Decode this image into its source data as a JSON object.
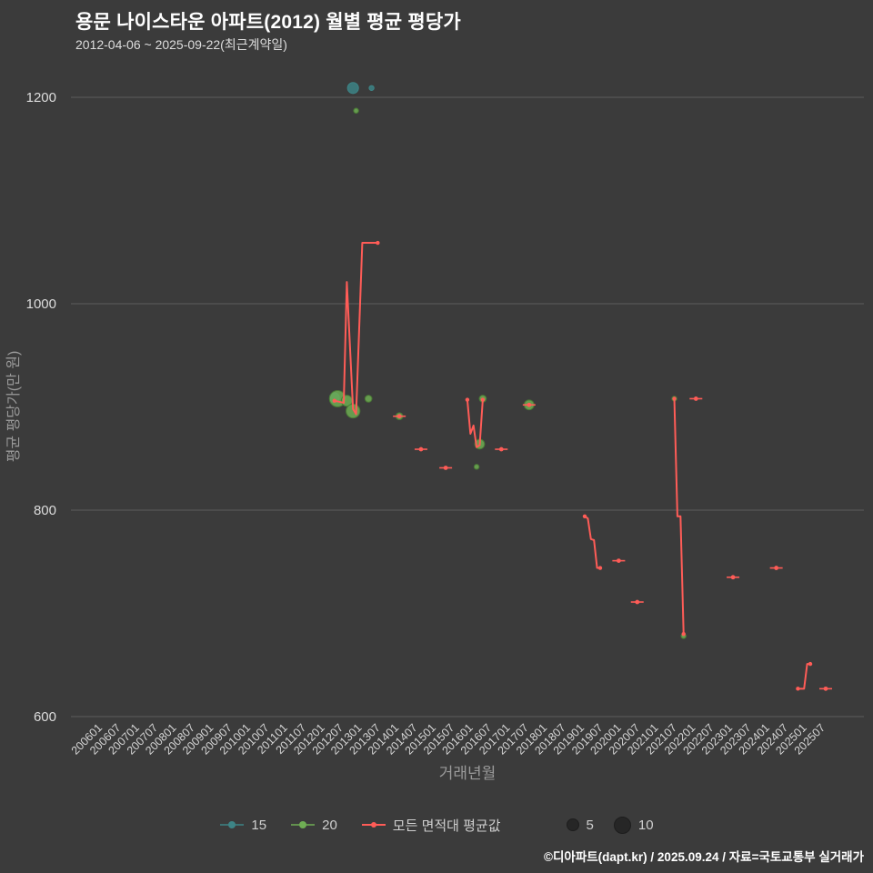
{
  "title": "용문 나이스타운 아파트(2012) 월별 평균 평당가",
  "subtitle": "2012-04-06 ~ 2025-09-22(최근계약일)",
  "footer": "©디아파트(dapt.kr) / 2025.09.24 / 자료=국토교통부 실거래가",
  "chart_data": {
    "type": "scatter",
    "title": "용문 나이스타운 아파트(2012) 월별 평균 평당가",
    "subtitle": "2012-04-06 ~ 2025-09-22(최근계약일)",
    "xlabel": "거래년월",
    "ylabel": "평균 평당가(만 원)",
    "ylim": [
      580,
      1230
    ],
    "y_ticks": [
      600,
      800,
      1000,
      1200
    ],
    "x_ticks": [
      "200601",
      "200607",
      "200701",
      "200707",
      "200801",
      "200807",
      "200901",
      "200907",
      "201001",
      "201007",
      "201101",
      "201107",
      "201201",
      "201207",
      "201301",
      "201307",
      "201401",
      "201407",
      "201501",
      "201507",
      "201601",
      "201607",
      "201701",
      "201707",
      "201801",
      "201807",
      "201901",
      "201907",
      "202001",
      "202007",
      "202101",
      "202107",
      "202201",
      "202207",
      "202301",
      "202307",
      "202401",
      "202407",
      "202501",
      "202507"
    ],
    "grid": "horizontal-only",
    "legend_position": "bottom-center",
    "colors": {
      "teal": "#3d8486",
      "green": "#6fae54",
      "green_stroke": "#4a7a36",
      "red": "#ff5c57",
      "size_dot": "#262626",
      "background": "#3b3b3b",
      "gridline": "#5c5c5c"
    },
    "series": [
      {
        "name": "15",
        "type": "scatter",
        "color_key": "teal",
        "points": [
          {
            "x": "201204",
            "y": 909,
            "size": 4
          },
          {
            "x": "201210",
            "y": 1209,
            "size": 5
          },
          {
            "x": "201304",
            "y": 1209,
            "size": 1
          }
        ]
      },
      {
        "name": "20",
        "type": "scatter",
        "color_key": "green",
        "stroke_key": "green_stroke",
        "points": [
          {
            "x": "201205",
            "y": 908,
            "size": 11
          },
          {
            "x": "201208",
            "y": 906,
            "size": 5
          },
          {
            "x": "201210",
            "y": 896,
            "size": 8
          },
          {
            "x": "201211",
            "y": 1187,
            "size": 1
          },
          {
            "x": "201303",
            "y": 908,
            "size": 2
          },
          {
            "x": "201401",
            "y": 891,
            "size": 2
          },
          {
            "x": "201602",
            "y": 842,
            "size": 1
          },
          {
            "x": "201603",
            "y": 864,
            "size": 4
          },
          {
            "x": "201604",
            "y": 908,
            "size": 2
          },
          {
            "x": "201707",
            "y": 902,
            "size": 4
          },
          {
            "x": "202106",
            "y": 908,
            "size": 1
          },
          {
            "x": "202109",
            "y": 678,
            "size": 1
          }
        ]
      },
      {
        "name": "모든 면적대 평균값",
        "type": "line",
        "color_key": "red",
        "segments": [
          [
            [
              "201204",
              906
            ],
            [
              "201207",
              904
            ],
            [
              "201208",
              1021
            ],
            [
              "201210",
              898
            ],
            [
              "201211",
              893
            ],
            [
              "201301",
              1059
            ],
            [
              "201306",
              1059
            ]
          ],
          [
            [
              "201401",
              891
            ]
          ],
          [
            [
              "201408",
              859
            ]
          ],
          [
            [
              "201504",
              841
            ]
          ],
          [
            [
              "201511",
              907
            ],
            [
              "201512",
              874
            ],
            [
              "201601",
              882
            ],
            [
              "201602",
              861
            ],
            [
              "201603",
              863
            ],
            [
              "201604",
              907
            ]
          ],
          [
            [
              "201610",
              859
            ]
          ],
          [
            [
              "201707",
              902
            ]
          ],
          [
            [
              "201901",
              794
            ],
            [
              "201902",
              792
            ],
            [
              "201903",
              772
            ],
            [
              "201904",
              771
            ],
            [
              "201905",
              744
            ],
            [
              "201906",
              744
            ]
          ],
          [
            [
              "201912",
              751
            ]
          ],
          [
            [
              "202006",
              711
            ]
          ],
          [
            [
              "202106",
              908
            ],
            [
              "202107",
              794
            ],
            [
              "202108",
              794
            ],
            [
              "202109",
              680
            ]
          ],
          [
            [
              "202201",
              908
            ]
          ],
          [
            [
              "202301",
              735
            ]
          ],
          [
            [
              "202403",
              744
            ]
          ],
          [
            [
              "202410",
              627
            ],
            [
              "202412",
              627
            ],
            [
              "202501",
              651
            ],
            [
              "202502",
              651
            ]
          ],
          [
            [
              "202507",
              627
            ]
          ]
        ]
      }
    ],
    "size_legend": [
      {
        "label": "5",
        "size": 5
      },
      {
        "label": "10",
        "size": 10
      }
    ]
  }
}
